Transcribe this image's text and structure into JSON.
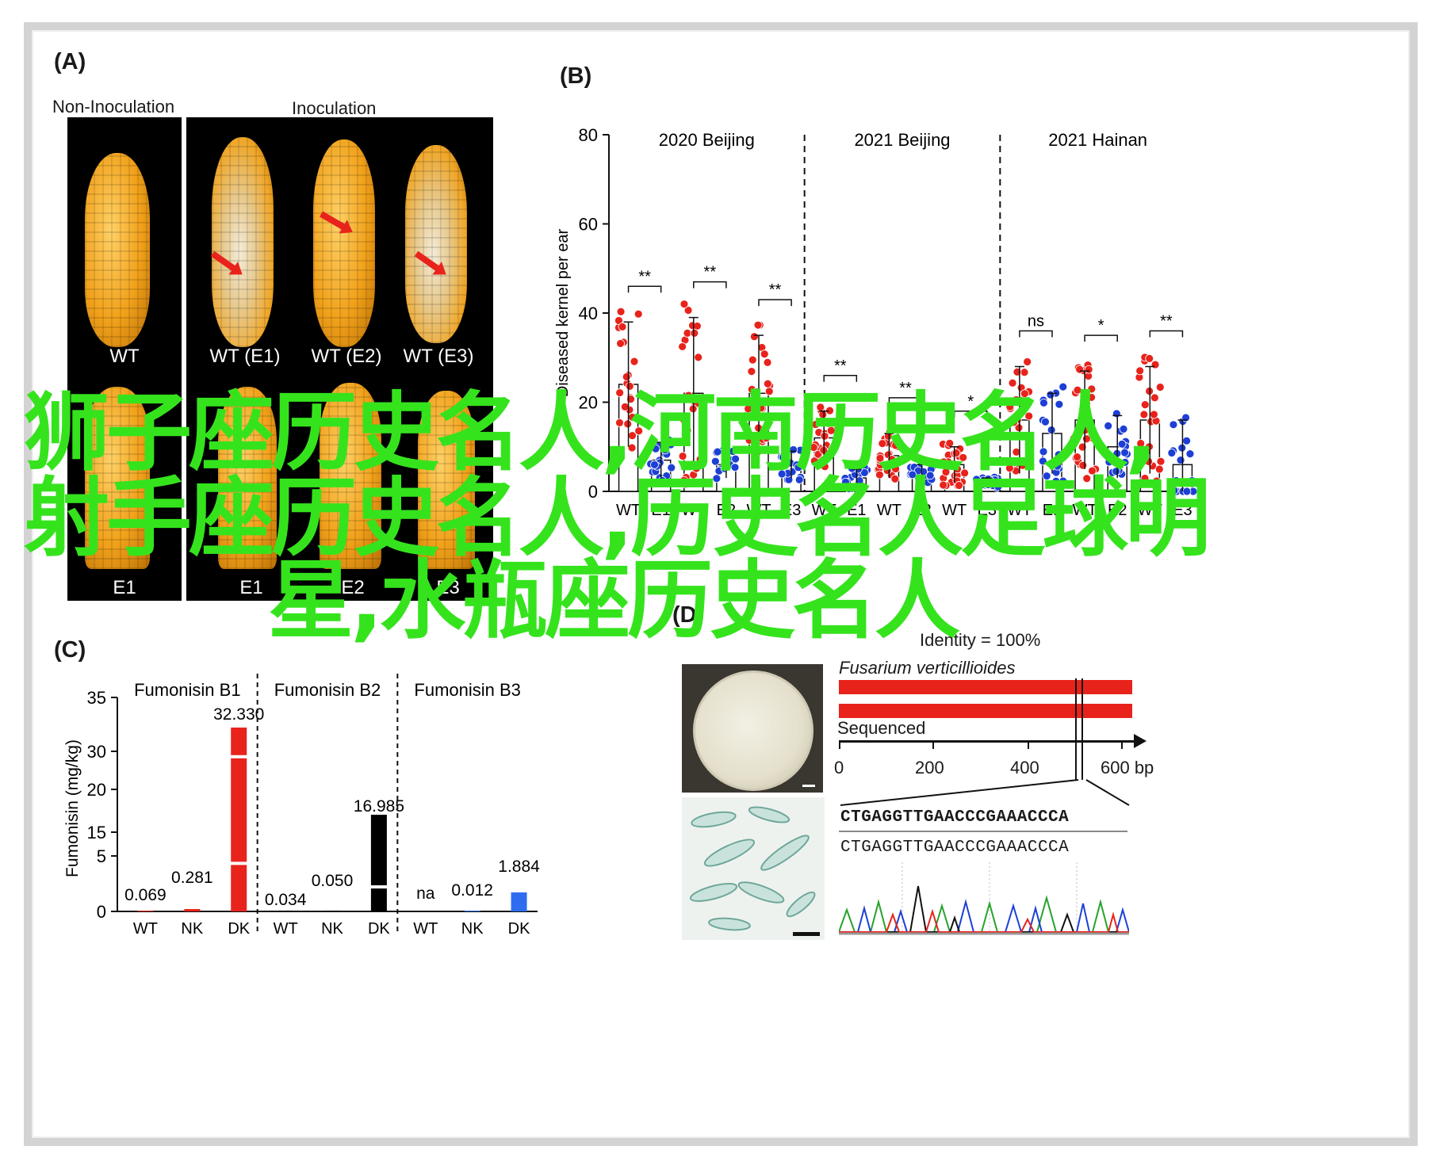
{
  "panels": {
    "A": {
      "label": "(A)",
      "headers": [
        "Non-Inoculation",
        "Inoculation"
      ],
      "top_labels": [
        "WT",
        "WT (E1)",
        "WT (E2)",
        "WT (E3)"
      ],
      "bottom_labels": [
        "E1",
        "E1",
        "E2",
        "E3"
      ]
    },
    "B": {
      "label": "(B)",
      "ylabel": "Diseased kernel per ear",
      "groups": [
        "2020 Beijing",
        "2021 Beijing",
        "2021 Hainan"
      ]
    },
    "C": {
      "label": "(C)"
    },
    "D": {
      "label": "(D)",
      "identity": "Identity = 100%",
      "species": "Fusarium verticillioides",
      "sequenced": "Sequenced",
      "axis_ticks": [
        "0",
        "200",
        "400",
        "600 bp"
      ],
      "seq1": "CTGAGGTTGAACCCGAAACCCA",
      "seq2": "CTGAGGTTGAACCCGAAACCCA"
    }
  },
  "overlay_text": [
    "狮子座历史名人,河南历史名人,",
    "射手座历史名人,历史名人足球明",
    "星,水瓶座历史名人"
  ],
  "colors": {
    "wt": "#e8231c",
    "mutant": "#1d3fd6",
    "overlay": "#35e31d",
    "dk": "#000000",
    "b3": "#2f6df0"
  },
  "chart_data": [
    {
      "type": "bar",
      "title": "",
      "ylabel": "Diseased kernel per ear",
      "ylim": [
        0,
        80
      ],
      "yticks": [
        0,
        20,
        40,
        60,
        80
      ],
      "panels": [
        {
          "name": "2020 Beijing",
          "categories": [
            "WT",
            "E1",
            "WT",
            "E2",
            "WT",
            "E3"
          ],
          "values": [
            24,
            7,
            22,
            6,
            22,
            6
          ],
          "errors": [
            14,
            4,
            17,
            3,
            13,
            3
          ],
          "significance": [
            "**",
            "**",
            "**"
          ]
        },
        {
          "name": "2021 Beijing",
          "categories": [
            "WT",
            "E1",
            "WT",
            "E2",
            "WT",
            "E3"
          ],
          "values": [
            12,
            3,
            8,
            4,
            6,
            2
          ],
          "errors": [
            6,
            2,
            5,
            2,
            4,
            1
          ],
          "significance": [
            "**",
            "**",
            "*"
          ]
        },
        {
          "name": "2021 Hainan",
          "categories": [
            "WT",
            "E1",
            "WT",
            "E2",
            "WT",
            "E3"
          ],
          "values": [
            16,
            13,
            16,
            10,
            16,
            6
          ],
          "errors": [
            12,
            9,
            11,
            7,
            12,
            10
          ],
          "significance": [
            "ns",
            "*",
            "**"
          ]
        }
      ]
    },
    {
      "type": "bar",
      "title": "",
      "ylabel": "Fumonisin (mg/kg)",
      "yticks": [
        "0",
        "5",
        "15",
        "20",
        "30",
        "35"
      ],
      "panels": [
        {
          "name": "Fumonisin B1",
          "categories": [
            "WT",
            "NK",
            "DK"
          ],
          "values": [
            0.069,
            0.281,
            32.33
          ],
          "labels": [
            "0.069",
            "0.281",
            "32.330"
          ]
        },
        {
          "name": "Fumonisin B2",
          "categories": [
            "WT",
            "NK",
            "DK"
          ],
          "values": [
            0.034,
            0.05,
            16.985
          ],
          "labels": [
            "0.034",
            "0.050",
            "16.985"
          ]
        },
        {
          "name": "Fumonisin B3",
          "categories": [
            "WT",
            "NK",
            "DK"
          ],
          "values": [
            null,
            0.012,
            1.884
          ],
          "labels": [
            "na",
            "0.012",
            "1.884"
          ]
        }
      ]
    }
  ]
}
